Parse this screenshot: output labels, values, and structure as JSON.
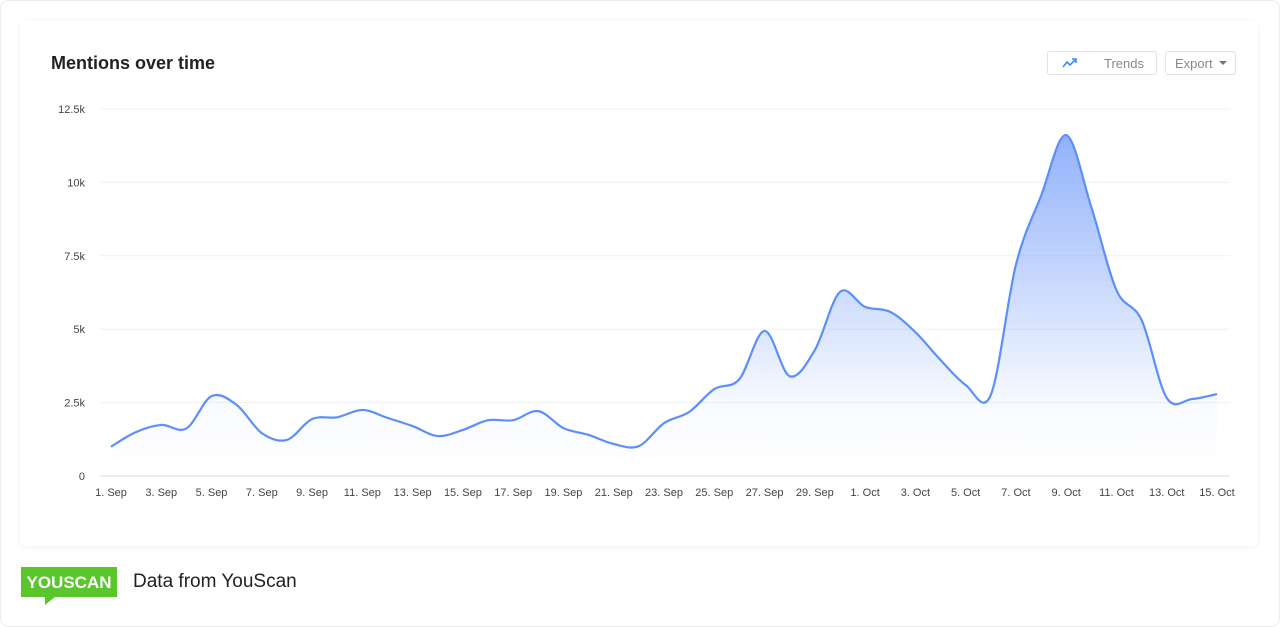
{
  "header": {
    "title": "Mentions over time",
    "trends_label": "Trends",
    "export_label": "Export"
  },
  "footer": {
    "logo_text": "YOUSCAN",
    "credit": "Data from YouScan"
  },
  "colors": {
    "line": "#5b8ff9",
    "area_top": "#7ea4fb",
    "logo_green": "#5bc52c"
  },
  "icons": {
    "trends": "trending-up-icon",
    "export": "caret-down-icon"
  },
  "chart_data": {
    "type": "area",
    "title": "Mentions over time",
    "xlabel": "",
    "ylabel": "",
    "ylim": [
      0,
      12500
    ],
    "yticks": [
      0,
      2500,
      5000,
      7500,
      10000,
      12500
    ],
    "ytick_labels": [
      "0",
      "2.5k",
      "5k",
      "7.5k",
      "10k",
      "12.5k"
    ],
    "xtick_labels": [
      "1. Sep",
      "3. Sep",
      "5. Sep",
      "7. Sep",
      "9. Sep",
      "11. Sep",
      "13. Sep",
      "15. Sep",
      "17. Sep",
      "19. Sep",
      "21. Sep",
      "23. Sep",
      "25. Sep",
      "27. Sep",
      "29. Sep",
      "1. Oct",
      "3. Oct",
      "5. Oct",
      "7. Oct",
      "9. Oct",
      "11. Oct",
      "13. Oct",
      "15. Oct"
    ],
    "x_start": "1. Sep",
    "x_end": "15. Oct",
    "grid": true,
    "values": [
      1000,
      1500,
      1740,
      1620,
      2720,
      2420,
      1460,
      1230,
      1940,
      2000,
      2250,
      1980,
      1700,
      1360,
      1570,
      1900,
      1900,
      2210,
      1630,
      1400,
      1090,
      1020,
      1800,
      2180,
      2960,
      3300,
      4940,
      3400,
      4290,
      6270,
      5760,
      5590,
      4900,
      3950,
      3100,
      2760,
      7190,
      9540,
      11610,
      9160,
      6330,
      5310,
      2660,
      2620,
      2790
    ]
  }
}
